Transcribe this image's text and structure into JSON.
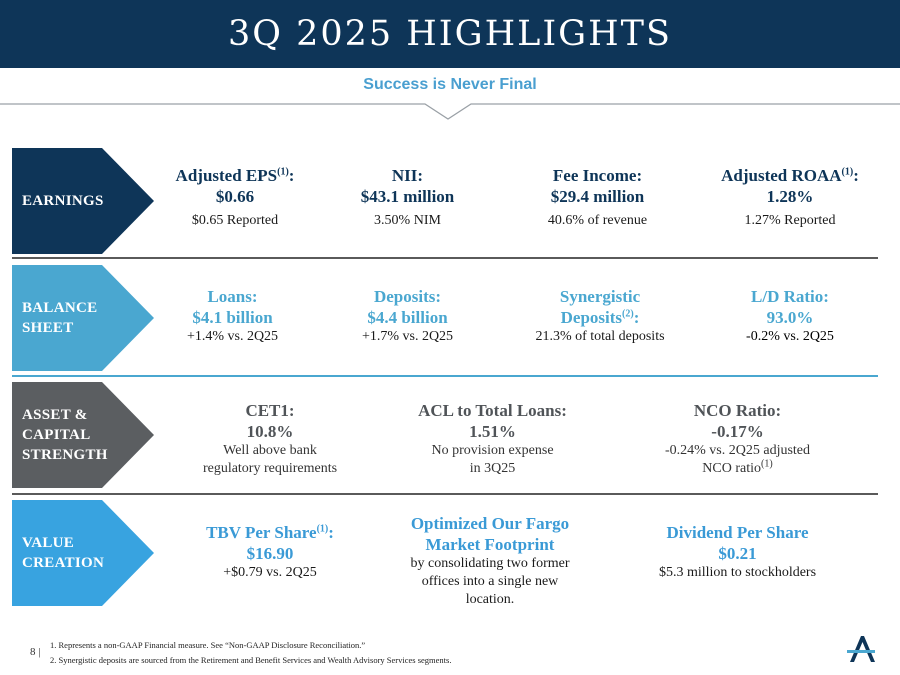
{
  "header": {
    "title": "3Q 2025 HIGHLIGHTS"
  },
  "tagline": "Success is Never Final",
  "colors": {
    "navy": "#0e3558",
    "balance_blue": "#4aa7d0",
    "asset_gray": "#5b5e61",
    "value_blue": "#38a3e0"
  },
  "earnings": {
    "label": "EARNINGS",
    "eps": {
      "title": "Adjusted EPS",
      "sup": "(1)",
      "colon": ":",
      "value": "$0.66",
      "sub": "$0.65 Reported"
    },
    "nii": {
      "title": "NII:",
      "value": "$43.1 million",
      "sub": "3.50% NIM"
    },
    "fee": {
      "title": "Fee Income:",
      "value": "$29.4 million",
      "sub": "40.6% of revenue"
    },
    "roaa": {
      "title": "Adjusted ROAA",
      "sup": "(1)",
      "colon": ":",
      "value": "1.28%",
      "sub": "1.27% Reported"
    }
  },
  "balance": {
    "label": "BALANCE\nSHEET",
    "loans": {
      "title": "Loans:",
      "value": "$4.1 billion",
      "sub": "+1.4% vs.  2Q25"
    },
    "deposits": {
      "title": "Deposits:",
      "value": "$4.4 billion",
      "sub": "+1.7% vs. 2Q25"
    },
    "synergistic": {
      "title1": "Synergistic",
      "title2": "Deposits",
      "sup": "(2)",
      "colon": ":",
      "sub": "21.3% of total deposits"
    },
    "ld": {
      "title": "L/D Ratio:",
      "value": "93.0%",
      "sub": "-0.2% vs. 2Q25"
    }
  },
  "asset": {
    "label": "ASSET &\nCAPITAL\nSTRENGTH",
    "cet1": {
      "title": "CET1:",
      "value": "10.8%",
      "sub1": "Well above bank",
      "sub2": "regulatory requirements"
    },
    "acl": {
      "title": "ACL to Total Loans:",
      "value": "1.51%",
      "sub1": "No provision expense",
      "sub2": "in 3Q25"
    },
    "nco": {
      "title": "NCO Ratio:",
      "value": "-0.17%",
      "sub1": "-0.24% vs. 2Q25 adjusted",
      "sub2": "NCO ratio",
      "sup": "(1)"
    }
  },
  "value": {
    "label": "VALUE\nCREATION",
    "tbv": {
      "title": "TBV Per Share",
      "sup": "(1)",
      "colon": ":",
      "value": "$16.90",
      "sub": "+$0.79 vs. 2Q25"
    },
    "fargo": {
      "title1": "Optimized Our Fargo",
      "title2": "Market Footprint",
      "sub1": "by consolidating two former",
      "sub2": "offices into a single new",
      "sub3": "location."
    },
    "dividend": {
      "title": "Dividend Per Share",
      "value": "$0.21",
      "sub": "$5.3 million to stockholders"
    }
  },
  "footer": {
    "page": "8 |",
    "note1": "1. Represents a non-GAAP Financial measure. See “Non-GAAP Disclosure Reconciliation.”",
    "note2": "2. Synergistic deposits are sourced from the Retirement and Benefit Services and Wealth Advisory Services segments."
  },
  "logo": {
    "icon": "alerus-a-logo"
  }
}
